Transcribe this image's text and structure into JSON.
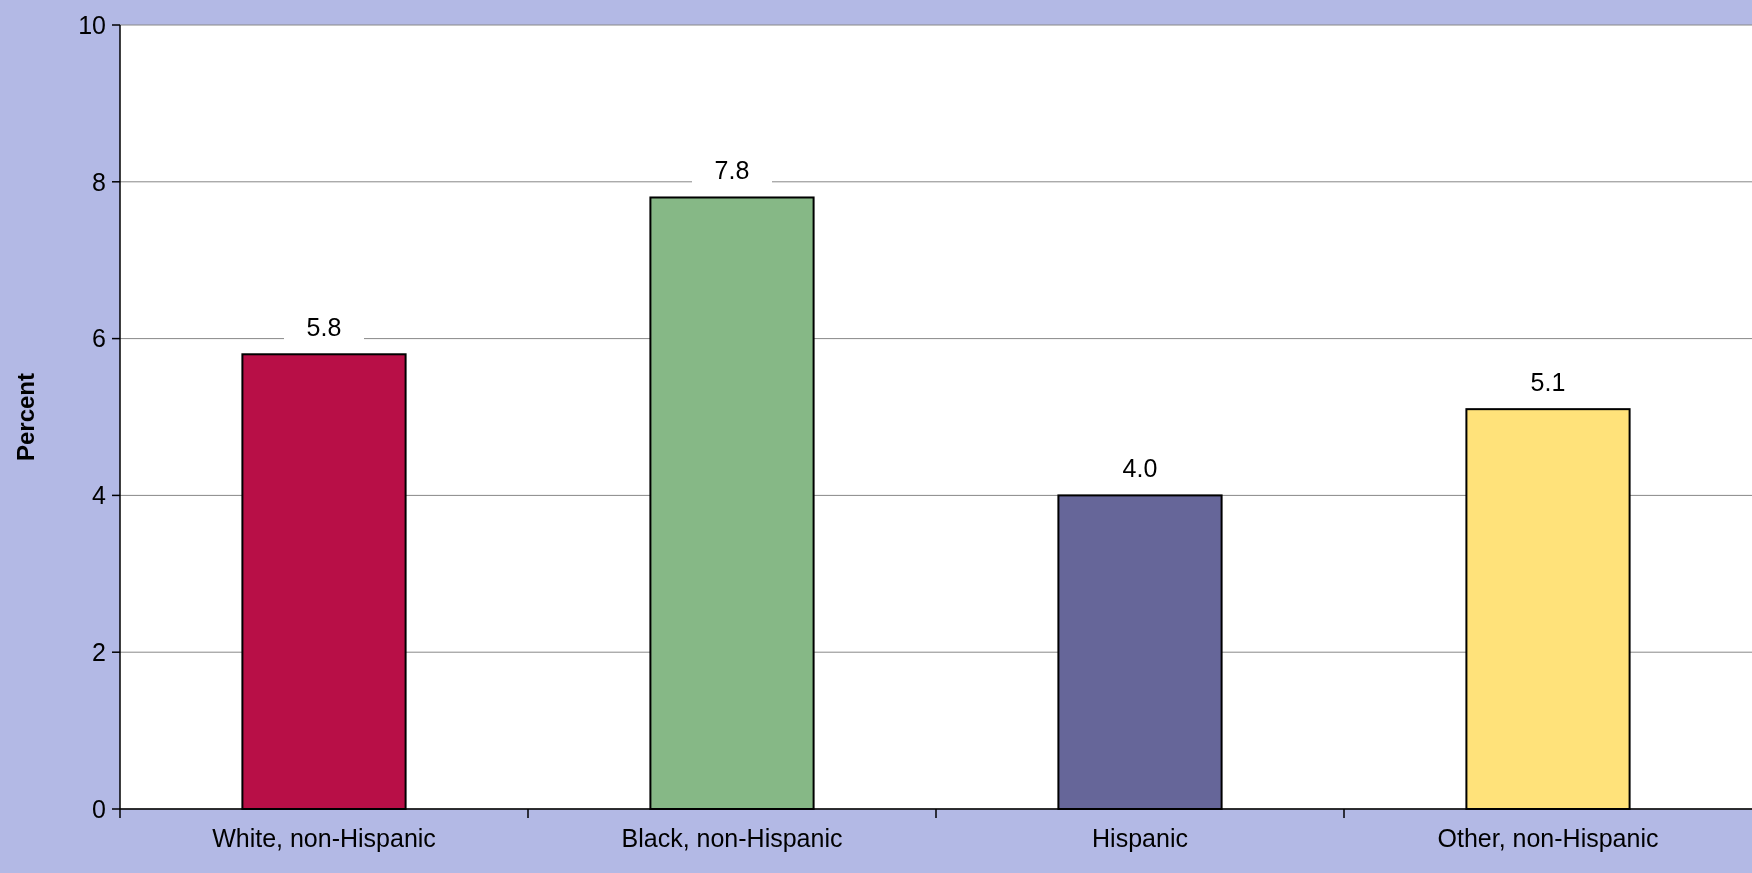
{
  "chart_data": {
    "type": "bar",
    "ylabel": "Percent",
    "categories": [
      "White, non-Hispanic",
      "Black, non-Hispanic",
      "Hispanic",
      "Other, non-Hispanic"
    ],
    "values": [
      5.8,
      7.8,
      4.0,
      5.1
    ],
    "colors": [
      "#b80f47",
      "#86b886",
      "#666699",
      "#ffe27a"
    ],
    "value_labels": [
      "5.8",
      "7.8",
      "4.0",
      "5.1"
    ],
    "ylim": [
      0,
      10
    ],
    "yticks": [
      0,
      2,
      4,
      6,
      8,
      10
    ],
    "grid": "y"
  }
}
